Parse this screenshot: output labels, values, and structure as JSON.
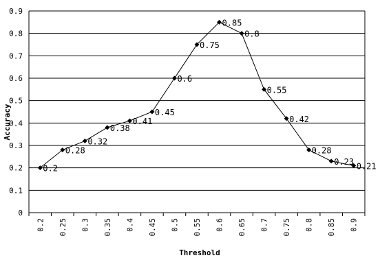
{
  "chart_data": {
    "type": "line",
    "title": "",
    "xlabel": "Threshold",
    "ylabel": "Accuracy",
    "x": [
      "0.2",
      "0.25",
      "0.3",
      "0.35",
      "0.4",
      "0.45",
      "0.5",
      "0.55",
      "0.6",
      "0.65",
      "0.7",
      "0.75",
      "0.8",
      "0.85",
      "0.9"
    ],
    "series": [
      {
        "values": [
          0.2,
          0.28,
          0.32,
          0.38,
          0.41,
          0.45,
          0.6,
          0.75,
          0.85,
          0.8,
          0.55,
          0.42,
          0.28,
          0.23,
          0.21
        ],
        "labels": [
          "0.2",
          "0.28",
          "0.32",
          "0.38",
          "0.41",
          "0.45",
          "0.6",
          "0.75",
          "0.85",
          "0.8",
          "0.55",
          "0.42",
          "0.28",
          "0.23",
          "0.21"
        ]
      }
    ],
    "yticks": [
      "0",
      "0.1",
      "0.2",
      "0.3",
      "0.4",
      "0.5",
      "0.6",
      "0.7",
      "0.8",
      "0.9"
    ],
    "ylim": [
      0,
      0.9
    ],
    "grid": "horizontal",
    "legend": "none",
    "colors": {
      "line": "#000000",
      "grid": "#000000",
      "marker": "#000000"
    }
  }
}
